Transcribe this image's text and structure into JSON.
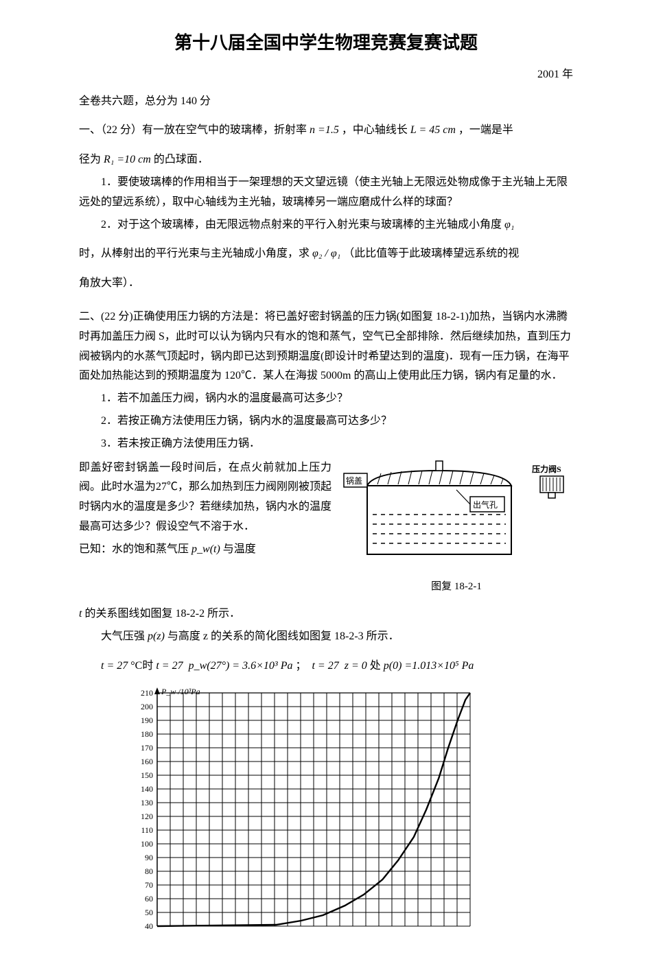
{
  "title": "第十八届全国中学生物理竞赛复赛试题",
  "year": "2001 年",
  "preamble": "全卷共六题，总分为 140 分",
  "q1": {
    "open_a": "一、（22 分）有一放在空气中的玻璃棒，折射率 ",
    "n_expr": "n =1.5",
    "open_b": "，中心轴线长 ",
    "L_expr": "L = 45 cm",
    "open_c": "，一端是半",
    "line2_a": "径为",
    "R_expr": "R₁ =10 cm",
    "line2_b": " 的凸球面．",
    "p1": "1．要使玻璃棒的作用相当于一架理想的天文望远镜（使主光轴上无限远处物成像于主光轴上无限远处的望远系统），取中心轴线为主光轴，玻璃棒另一端应磨成什么样的球面？",
    "p2_a": "2．对于这个玻璃棒，由无限远物点射来的平行入射光束与玻璃棒的主光轴成小角度 ",
    "phi1": "φ₁",
    "p2_b": "时，从棒射出的平行光束与主光轴成小角度，求 ",
    "ratio": "φ₂ / φ₁",
    "p2_c": "（此比值等于此玻璃棒望远系统的视",
    "p2_d": "角放大率）．"
  },
  "q2": {
    "intro": "二、(22 分)正确使用压力锅的方法是：将已盖好密封锅盖的压力锅(如图复 18-2-1)加热，当锅内水沸腾时再加盖压力阀 S，此时可以认为锅内只有水的饱和蒸气，空气已全部排除．然后继续加热，直到压力阀被锅内的水蒸气顶起时，锅内即已达到预期温度(即设计时希望达到的温度)．现有一压力锅，在海平面处加热能达到的预期温度为 120℃．某人在海拔 5000m 的高山上使用此压力锅，锅内有足量的水．",
    "s1": "1．若不加盖压力阀，锅内水的温度最高可达多少？",
    "s2": "2．若按正确方法使用压力锅，锅内水的温度最高可达多少？",
    "s3": "3．若未按正确方法使用压力锅．",
    "body_a": "即盖好密封锅盖一段时间后，在点火前就加上压力阀。此时水温为27℃，那么加热到压力阀刚刚被顶起时锅内水的温度是多少？若继续加热，锅内水的温度最高可达多少？假设空气不溶于水．",
    "known_a": "已知：水的饱和蒸气压 ",
    "pw_expr": "p_w(t)",
    "known_b": " 与温度",
    "known_c": " 的关系图线如图复 18-2-2 所示．",
    "t_var": "t",
    "pz_a": "大气压强 ",
    "pz_expr": "p(z)",
    "pz_b": " 与高度 z 的关系的简化图线如图复 18-2-3 所示．",
    "eq_a": "t = 27",
    "eq_b": "°C时",
    "eq_c": "t = 27",
    "eq_d": "p_w(27°) = 3.6×10³ Pa",
    "eq_sep": "；",
    "eq_e": "t = 27",
    "eq_f": "z = 0",
    "eq_g": "处",
    "eq_h": "p(0) =1.013×10⁵ Pa"
  },
  "fig1": {
    "lid_label": "锅盖",
    "valve_label": "压力阀S",
    "hole_label": "出气孔",
    "caption": "图复 18-2-1",
    "colors": {
      "stroke": "#000000",
      "hatch": "#000000",
      "bg": "#ffffff"
    }
  },
  "chart": {
    "y_label": "P_w /10³Pa",
    "y_min": 40,
    "y_max": 210,
    "y_step": 10,
    "y_ticks": [
      40,
      50,
      60,
      70,
      80,
      90,
      100,
      110,
      120,
      130,
      140,
      150,
      160,
      170,
      180,
      190,
      200,
      210
    ],
    "grid_color": "#000000",
    "bg_color": "#ffffff",
    "line_color": "#000000",
    "curve_points": [
      [
        0.0,
        40
      ],
      [
        0.38,
        41
      ],
      [
        0.46,
        44
      ],
      [
        0.53,
        48
      ],
      [
        0.6,
        55
      ],
      [
        0.66,
        63
      ],
      [
        0.72,
        74
      ],
      [
        0.77,
        88
      ],
      [
        0.82,
        105
      ],
      [
        0.86,
        125
      ],
      [
        0.9,
        148
      ],
      [
        0.93,
        170
      ],
      [
        0.96,
        190
      ],
      [
        0.985,
        205
      ],
      [
        1.0,
        210
      ]
    ]
  }
}
